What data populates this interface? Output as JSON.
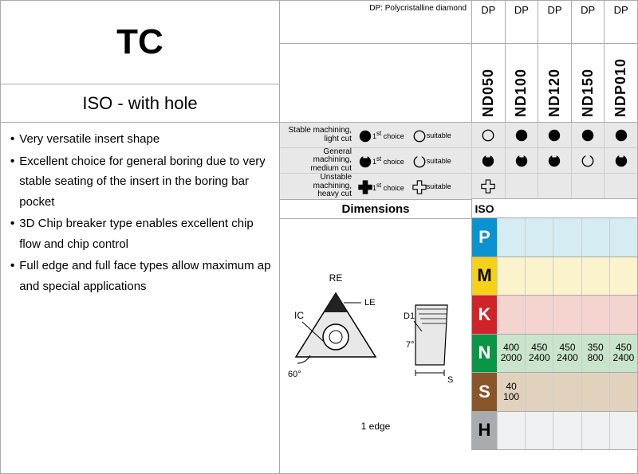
{
  "title": "TC",
  "subtitle": "ISO - with hole",
  "features": [
    "Very versatile insert shape",
    "Excellent choice for general boring due to very stable seating of the insert in the boring bar pocket",
    "3D Chip breaker type enables excellent chip flow and chip control",
    "Full edge and full face types allow maximum ap and special applications"
  ],
  "dp_head_text": "DP: Polycristalline diamond",
  "dp_labels": [
    "DP",
    "DP",
    "DP",
    "DP",
    "DP"
  ],
  "grades": [
    "ND050",
    "ND100",
    "ND120",
    "ND150",
    "NDP010"
  ],
  "legend": [
    {
      "label": "Stable machining,\nlight cut",
      "icon1": "solid-circle",
      "text1": "1st choice",
      "icon2": "open-circle",
      "text2": "suitable"
    },
    {
      "label": "General machining,\nmedium cut",
      "icon1": "solid-notch",
      "text1": "1st choice",
      "icon2": "open-notch",
      "text2": "suitable"
    },
    {
      "label": "Unstable machining,\nheavy cut",
      "icon1": "solid-cross",
      "text1": "1st choice",
      "icon2": "open-cross",
      "text2": "suitable"
    }
  ],
  "marks": {
    "row0": [
      "open-circle",
      "solid-circle",
      "solid-circle",
      "solid-circle",
      "solid-circle"
    ],
    "row1": [
      "solid-notch",
      "solid-notch",
      "solid-notch",
      "open-notch",
      "solid-notch"
    ],
    "row2": [
      "open-cross",
      "",
      "",
      "",
      ""
    ]
  },
  "dimensions_label": "Dimensions",
  "iso_label": "ISO",
  "diagram_labels": {
    "RE": "RE",
    "LE": "LE",
    "IC": "IC",
    "angle60": "60°",
    "D1": "D1",
    "S": "S",
    "angle7": "7°"
  },
  "edge_label": "1 edge",
  "materials": [
    "P",
    "M",
    "K",
    "N",
    "S",
    "H"
  ],
  "material_colors": {
    "P": {
      "label_bg": "#0b92d1",
      "cell_bg": "#d6ecf3"
    },
    "M": {
      "label_bg": "#f7d117",
      "cell_bg": "#fbf3cc"
    },
    "K": {
      "label_bg": "#d1232a",
      "cell_bg": "#f4d4ce"
    },
    "N": {
      "label_bg": "#0a9547",
      "cell_bg": "#c9e4cb"
    },
    "S": {
      "label_bg": "#8a5529",
      "cell_bg": "#e1d2bd"
    },
    "H": {
      "label_bg": "#a8acae",
      "cell_bg": "#eef0f1"
    }
  },
  "material_values": {
    "P": [
      "",
      "",
      "",
      "",
      ""
    ],
    "M": [
      "",
      "",
      "",
      "",
      ""
    ],
    "K": [
      "",
      "",
      "",
      "",
      ""
    ],
    "N": [
      [
        "400",
        "2000"
      ],
      [
        "450",
        "2400"
      ],
      [
        "450",
        "2400"
      ],
      [
        "350",
        "800"
      ],
      [
        "450",
        "2400"
      ]
    ],
    "S": [
      [
        "40",
        "100"
      ],
      "",
      "",
      "",
      ""
    ],
    "H": [
      "",
      "",
      "",
      "",
      ""
    ]
  }
}
